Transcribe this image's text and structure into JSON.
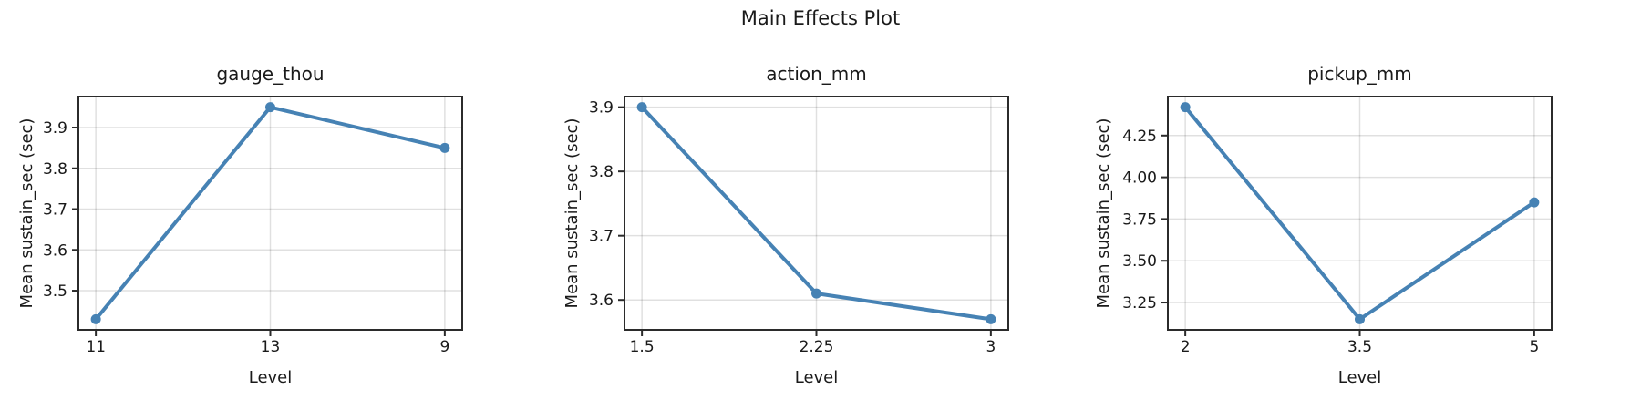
{
  "figure": {
    "title": "Main Effects Plot",
    "background": "#ffffff",
    "text_color": "#1a1a1a",
    "accent_color": "#4682b4",
    "grid_color": "rgba(0,0,0,0.12)",
    "spine_color": "#2b2b2b"
  },
  "chart_data": [
    {
      "type": "line",
      "title": "gauge_thou",
      "xlabel": "Level",
      "ylabel": "Mean sustain_sec (sec)",
      "categories": [
        "11",
        "13",
        "9"
      ],
      "values": [
        3.43,
        3.95,
        3.85
      ],
      "ylim": [
        3.404,
        3.976
      ],
      "yticks": [
        3.5,
        3.6,
        3.7,
        3.8,
        3.9
      ],
      "ytick_labels": [
        "3.5",
        "3.6",
        "3.7",
        "3.8",
        "3.9"
      ],
      "grid": true,
      "legend_position": "none"
    },
    {
      "type": "line",
      "title": "action_mm",
      "xlabel": "Level",
      "ylabel": "Mean sustain_sec (sec)",
      "categories": [
        "1.5",
        "2.25",
        "3"
      ],
      "values": [
        3.9,
        3.61,
        3.57
      ],
      "ylim": [
        3.5535,
        3.9165
      ],
      "yticks": [
        3.6,
        3.7,
        3.8,
        3.9
      ],
      "ytick_labels": [
        "3.6",
        "3.7",
        "3.8",
        "3.9"
      ],
      "grid": true,
      "legend_position": "none"
    },
    {
      "type": "line",
      "title": "pickup_mm",
      "xlabel": "Level",
      "ylabel": "Mean sustain_sec (sec)",
      "categories": [
        "2",
        "3.5",
        "5"
      ],
      "values": [
        4.42,
        3.15,
        3.85
      ],
      "ylim": [
        3.0865,
        4.4835
      ],
      "yticks": [
        3.25,
        3.5,
        3.75,
        4.0,
        4.25
      ],
      "ytick_labels": [
        "3.25",
        "3.50",
        "3.75",
        "4.00",
        "4.25"
      ],
      "grid": true,
      "legend_position": "none"
    }
  ]
}
